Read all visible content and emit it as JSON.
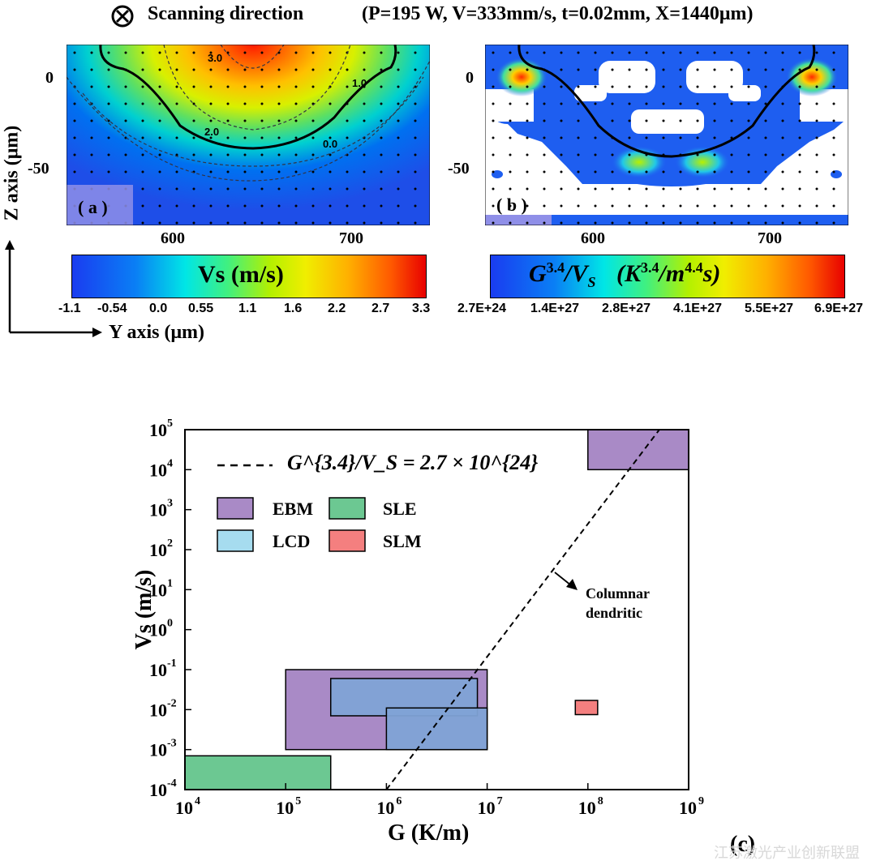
{
  "header": {
    "scan_icon": "circled-times-icon",
    "scan_label": "Scanning direction",
    "params": "(P=195 W, V=333mm/s, t=0.02mm, X=1440μm)"
  },
  "axes_labels": {
    "z_axis": "Z axis (μm)",
    "y_axis": "Y axis (μm)"
  },
  "panel_a": {
    "label": "( a )",
    "y_ticks": [
      "0",
      "-50"
    ],
    "x_ticks": [
      "600",
      "700"
    ],
    "contour_labels": [
      "3.0",
      "2.0",
      "1.0",
      "0.0"
    ],
    "colorbar_title": "Vs (m/s)",
    "colorbar_ticks": [
      "-1.1",
      "-0.54",
      "0.0",
      "0.55",
      "1.1",
      "1.6",
      "2.2",
      "2.7",
      "3.3"
    ]
  },
  "panel_b": {
    "label": "( b )",
    "y_ticks": [
      "0",
      "-50"
    ],
    "x_ticks": [
      "600",
      "700"
    ],
    "colorbar_title_main": "G",
    "colorbar_title_sup": "3.4",
    "colorbar_title_mid": "/V",
    "colorbar_title_sub": "S",
    "colorbar_title_unit_open": "(K",
    "colorbar_title_unit_sup1": "3.4",
    "colorbar_title_unit_mid": "/m",
    "colorbar_title_unit_sup2": "4.4",
    "colorbar_title_unit_close": "s)",
    "colorbar_ticks": [
      "2.7E+24",
      "1.4E+27",
      "2.8E+27",
      "4.1E+27",
      "5.5E+27",
      "6.9E+27"
    ]
  },
  "panel_c": {
    "label": "(c)",
    "watermark": "江苏激光产业创新联盟"
  },
  "colors": {
    "EBM": "#a98ac6",
    "SLE": "#6cc892",
    "LCD": "#a6dcef",
    "SLM": "#f47f7f",
    "LCD_overlap": "#7fa3d6"
  },
  "chart_data": {
    "type": "area",
    "xscale": "log",
    "yscale": "log",
    "xlabel": "G (K/m)",
    "ylabel": "Vs (m/s)",
    "xlim": [
      10000,
      1000000000
    ],
    "ylim": [
      0.0001,
      100000
    ],
    "x_tick_labels": [
      "10^4",
      "10^5",
      "10^6",
      "10^7",
      "10^8",
      "10^9"
    ],
    "y_tick_labels": [
      "10^-4",
      "10^-3",
      "10^-2",
      "10^-1",
      "10^0",
      "10^1",
      "10^2",
      "10^3",
      "10^4",
      "10^5"
    ],
    "legend": {
      "line_label": "G^{3.4}/V_S = 2.7 × 10^{24}",
      "entries": [
        "EBM",
        "SLE",
        "LCD",
        "SLM"
      ],
      "placement": "top-left"
    },
    "boundary_line": {
      "style": "dashed",
      "points": [
        [
          1000000,
          0.0001
        ],
        [
          512000000,
          100000
        ]
      ]
    },
    "regions": [
      {
        "name": "EBM",
        "x": [
          100000000,
          1000000000
        ],
        "y": [
          10000,
          100000
        ]
      },
      {
        "name": "EBM",
        "x": [
          100000,
          10000000
        ],
        "y": [
          0.001,
          0.1
        ]
      },
      {
        "name": "LCD",
        "x": [
          280000,
          8000000
        ],
        "y": [
          0.007,
          0.06
        ]
      },
      {
        "name": "LCD",
        "x": [
          1000000,
          10000000
        ],
        "y": [
          0.001,
          0.011
        ]
      },
      {
        "name": "SLE",
        "x": [
          10000,
          280000
        ],
        "y": [
          0.0001,
          0.0007
        ]
      },
      {
        "name": "SLM",
        "x": [
          75000000,
          125000000
        ],
        "y": [
          0.0075,
          0.017
        ]
      }
    ],
    "annotation": {
      "text_line1": "Columnar",
      "text_line2": "dendritic"
    }
  }
}
